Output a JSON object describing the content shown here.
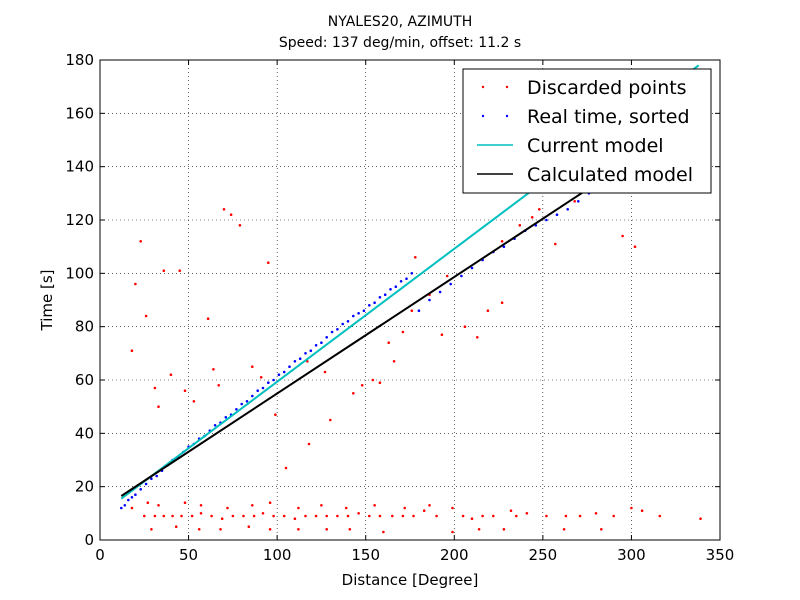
{
  "chart_data": {
    "type": "scatter",
    "title": "NYALES20, AZIMUTH",
    "subtitle": "Speed: 137 deg/min, offset: 11.2 s",
    "xlabel": "Distance [Degree]",
    "ylabel": "Time [s]",
    "xlim": [
      0,
      350
    ],
    "ylim": [
      0,
      180
    ],
    "xticks": [
      0,
      50,
      100,
      150,
      200,
      250,
      300,
      350
    ],
    "yticks": [
      0,
      20,
      40,
      60,
      80,
      100,
      120,
      140,
      160,
      180
    ],
    "grid": true,
    "legend_position": "top-right",
    "series": [
      {
        "name": "Discarded points",
        "kind": "points",
        "color": "#ff0000",
        "points": [
          [
            23,
            112
          ],
          [
            36,
            101
          ],
          [
            45,
            101
          ],
          [
            20,
            96
          ],
          [
            26,
            84
          ],
          [
            18,
            71
          ],
          [
            61,
            83
          ],
          [
            70,
            124
          ],
          [
            74,
            122
          ],
          [
            79,
            118
          ],
          [
            95,
            104
          ],
          [
            40,
            62
          ],
          [
            48,
            56
          ],
          [
            53,
            52
          ],
          [
            31,
            57
          ],
          [
            33,
            50
          ],
          [
            64,
            64
          ],
          [
            67,
            58
          ],
          [
            86,
            65
          ],
          [
            91,
            61
          ],
          [
            99,
            47
          ],
          [
            117,
            67
          ],
          [
            127,
            63
          ],
          [
            148,
            58
          ],
          [
            158,
            59
          ],
          [
            163,
            74
          ],
          [
            178,
            106
          ],
          [
            193,
            77
          ],
          [
            206,
            80
          ],
          [
            213,
            76
          ],
          [
            219,
            86
          ],
          [
            227,
            89
          ],
          [
            244,
            121
          ],
          [
            257,
            111
          ],
          [
            268,
            127
          ],
          [
            295,
            114
          ],
          [
            302,
            110
          ],
          [
            105,
            27
          ],
          [
            118,
            36
          ],
          [
            130,
            45
          ],
          [
            143,
            55
          ],
          [
            154,
            60
          ],
          [
            166,
            67
          ],
          [
            171,
            78
          ],
          [
            176,
            86
          ],
          [
            186,
            92
          ],
          [
            196,
            99
          ],
          [
            227,
            112
          ],
          [
            237,
            118
          ],
          [
            248,
            124
          ],
          [
            262,
            131
          ],
          [
            18,
            12
          ],
          [
            25,
            9
          ],
          [
            31,
            9
          ],
          [
            36,
            9
          ],
          [
            41,
            9
          ],
          [
            46,
            9
          ],
          [
            52,
            9
          ],
          [
            57,
            10
          ],
          [
            63,
            9
          ],
          [
            69,
            8
          ],
          [
            75,
            9
          ],
          [
            81,
            9
          ],
          [
            87,
            9
          ],
          [
            92,
            10
          ],
          [
            98,
            9
          ],
          [
            104,
            9
          ],
          [
            110,
            8
          ],
          [
            116,
            9
          ],
          [
            122,
            9
          ],
          [
            128,
            9
          ],
          [
            134,
            9
          ],
          [
            140,
            9
          ],
          [
            146,
            10
          ],
          [
            152,
            9
          ],
          [
            158,
            9
          ],
          [
            165,
            9
          ],
          [
            171,
            9
          ],
          [
            177,
            9
          ],
          [
            183,
            11
          ],
          [
            190,
            9
          ],
          [
            199,
            12
          ],
          [
            205,
            9
          ],
          [
            210,
            8
          ],
          [
            216,
            9
          ],
          [
            222,
            9
          ],
          [
            232,
            11
          ],
          [
            235,
            9
          ],
          [
            241,
            10
          ],
          [
            252,
            9
          ],
          [
            263,
            9
          ],
          [
            271,
            9
          ],
          [
            280,
            10
          ],
          [
            290,
            9
          ],
          [
            300,
            12
          ],
          [
            306,
            11
          ],
          [
            316,
            9
          ],
          [
            339,
            8
          ],
          [
            27,
            14
          ],
          [
            33,
            13
          ],
          [
            48,
            14
          ],
          [
            57,
            13
          ],
          [
            72,
            12
          ],
          [
            86,
            13
          ],
          [
            96,
            14
          ],
          [
            112,
            12
          ],
          [
            125,
            13
          ],
          [
            139,
            12
          ],
          [
            155,
            13
          ],
          [
            172,
            12
          ],
          [
            186,
            13
          ],
          [
            29,
            4
          ],
          [
            43,
            5
          ],
          [
            56,
            4
          ],
          [
            68,
            4
          ],
          [
            84,
            5
          ],
          [
            96,
            4
          ],
          [
            112,
            4
          ],
          [
            128,
            4
          ],
          [
            141,
            4
          ],
          [
            160,
            3
          ],
          [
            199,
            3
          ],
          [
            214,
            4
          ],
          [
            228,
            4
          ],
          [
            262,
            4
          ],
          [
            283,
            4
          ]
        ]
      },
      {
        "name": "Real time, sorted",
        "kind": "points",
        "color": "#0000ff",
        "points": [
          [
            12,
            12
          ],
          [
            14,
            13
          ],
          [
            16,
            15
          ],
          [
            18,
            16
          ],
          [
            20,
            17
          ],
          [
            23,
            19
          ],
          [
            26,
            21
          ],
          [
            29,
            23
          ],
          [
            32,
            24
          ],
          [
            35,
            26
          ],
          [
            38,
            28
          ],
          [
            41,
            30
          ],
          [
            44,
            31
          ],
          [
            47,
            33
          ],
          [
            50,
            35
          ],
          [
            53,
            36
          ],
          [
            56,
            38
          ],
          [
            59,
            39
          ],
          [
            62,
            41
          ],
          [
            65,
            43
          ],
          [
            68,
            44
          ],
          [
            71,
            46
          ],
          [
            74,
            47
          ],
          [
            77,
            49
          ],
          [
            80,
            51
          ],
          [
            83,
            52
          ],
          [
            86,
            54
          ],
          [
            89,
            56
          ],
          [
            92,
            57
          ],
          [
            95,
            59
          ],
          [
            98,
            60
          ],
          [
            101,
            62
          ],
          [
            104,
            63
          ],
          [
            107,
            65
          ],
          [
            110,
            67
          ],
          [
            113,
            68
          ],
          [
            116,
            70
          ],
          [
            119,
            71
          ],
          [
            122,
            73
          ],
          [
            125,
            74
          ],
          [
            128,
            76
          ],
          [
            131,
            78
          ],
          [
            134,
            79
          ],
          [
            137,
            81
          ],
          [
            140,
            82
          ],
          [
            143,
            84
          ],
          [
            146,
            85
          ],
          [
            149,
            86
          ],
          [
            152,
            88
          ],
          [
            155,
            89
          ],
          [
            158,
            91
          ],
          [
            161,
            92
          ],
          [
            164,
            94
          ],
          [
            167,
            95
          ],
          [
            170,
            97
          ],
          [
            173,
            98
          ],
          [
            176,
            100
          ],
          [
            180,
            86
          ],
          [
            186,
            90
          ],
          [
            192,
            93
          ],
          [
            198,
            96
          ],
          [
            204,
            99
          ],
          [
            210,
            102
          ],
          [
            216,
            105
          ],
          [
            222,
            108
          ],
          [
            228,
            110
          ],
          [
            234,
            113
          ],
          [
            240,
            116
          ],
          [
            246,
            118
          ],
          [
            252,
            120
          ],
          [
            258,
            122
          ],
          [
            264,
            124
          ],
          [
            270,
            127
          ],
          [
            276,
            130
          ],
          [
            281,
            132
          ]
        ]
      },
      {
        "name": "Current model",
        "kind": "line",
        "color": "#00bfbf",
        "points": [
          [
            12,
            15.5
          ],
          [
            338,
            178
          ]
        ]
      },
      {
        "name": "Calculated model",
        "kind": "line",
        "color": "#000000",
        "points": [
          [
            12,
            16.5
          ],
          [
            274,
            131
          ]
        ]
      }
    ]
  }
}
